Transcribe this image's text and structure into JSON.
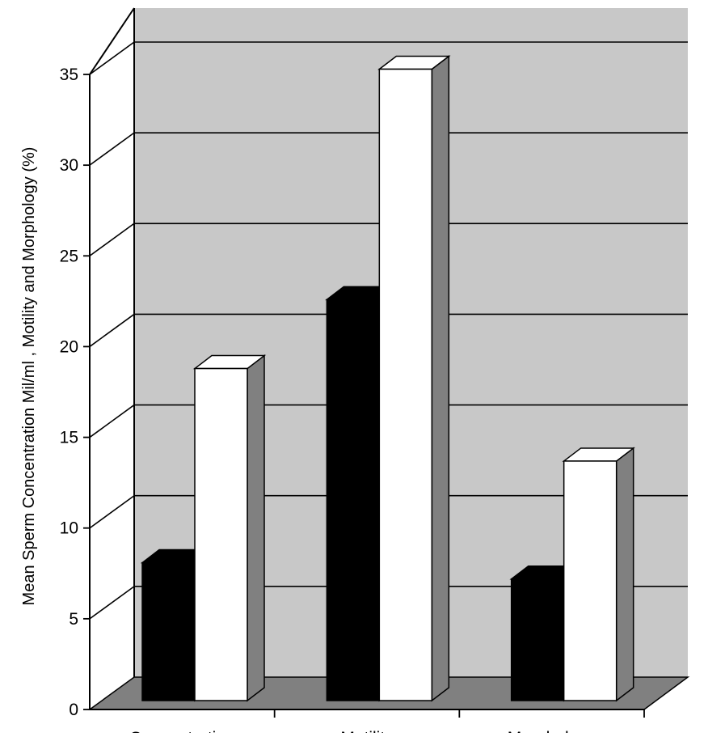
{
  "chart_data": {
    "type": "bar",
    "style": "3d-clustered-column",
    "title": "",
    "xlabel": "",
    "ylabel": "Mean Sperm Concentration Mil/ml , Motility and Morphology (%)",
    "ylim": [
      0,
      35
    ],
    "yticks": [
      0,
      5,
      10,
      15,
      20,
      25,
      30,
      35
    ],
    "grid": true,
    "legend": "none",
    "categories": [
      "Concentration",
      "Motility",
      "Morphology"
    ],
    "series": [
      {
        "values": [
          7.6,
          22.1,
          6.7
        ],
        "color": "#000000"
      },
      {
        "values": [
          18.3,
          34.8,
          13.2
        ],
        "color": "#ffffff"
      }
    ],
    "colors": {
      "back_wall": "#c8c8c8",
      "floor": "#808080",
      "bar_side": "#808080",
      "grid": "#000000"
    }
  }
}
